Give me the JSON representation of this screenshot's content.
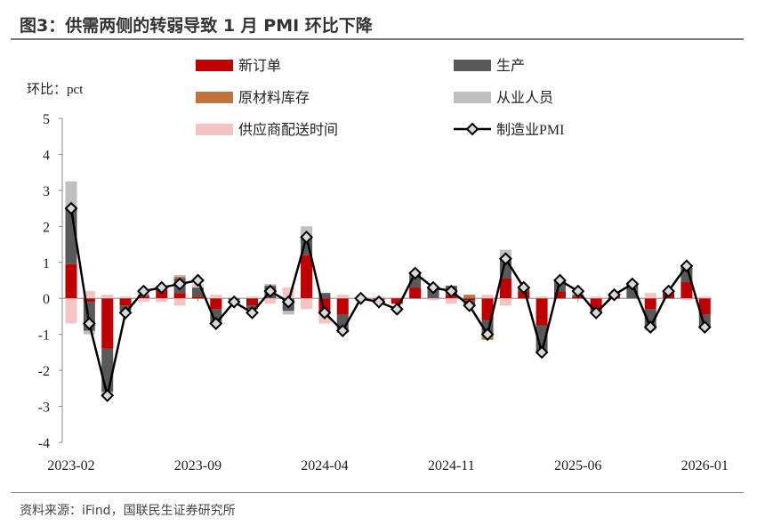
{
  "title": "图3：供需两侧的转弱导致 1 月 PMI 环比下降",
  "source": "资料来源：iFind，国联民生证券研究所",
  "chart_data": {
    "type": "bar+line",
    "ylabel": "环比：pct",
    "ylim": [
      -4,
      5
    ],
    "yticks": [
      "5",
      "4",
      "3",
      "2",
      "1",
      "0",
      "-1",
      "-2",
      "-3",
      "-4"
    ],
    "xtick_labels": [
      "2023-02",
      "2023-09",
      "2024-04",
      "2024-11",
      "2025-06",
      "2026-01"
    ],
    "legend_placement": "top",
    "categories": [
      "2023-02",
      "2023-03",
      "2023-04",
      "2023-05",
      "2023-06",
      "2023-07",
      "2023-08",
      "2023-09",
      "2023-10",
      "2023-11",
      "2023-12",
      "2024-01",
      "2024-02",
      "2024-03",
      "2024-04",
      "2024-05",
      "2024-06",
      "2024-07",
      "2024-08",
      "2024-09",
      "2024-10",
      "2024-11",
      "2024-12",
      "2025-01",
      "2025-02",
      "2025-03",
      "2025-04",
      "2025-05",
      "2025-06",
      "2025-07",
      "2025-08",
      "2025-09",
      "2025-10",
      "2025-11",
      "2025-12",
      "2026-01"
    ],
    "series": [
      {
        "name": "新订单",
        "type": "bar",
        "color": "#c00000",
        "values": [
          0.95,
          -0.1,
          -1.4,
          -0.2,
          0.05,
          0.25,
          0.15,
          0.05,
          -0.3,
          0,
          -0.2,
          0,
          0,
          1.2,
          -0.4,
          -0.45,
          0,
          -0.05,
          -0.15,
          0.3,
          0,
          0.1,
          -0.05,
          -0.6,
          0.55,
          0.2,
          -0.75,
          0.2,
          0.05,
          -0.3,
          0.05,
          0,
          -0.3,
          0.15,
          0.45,
          -0.45
        ]
      },
      {
        "name": "生产",
        "type": "bar",
        "color": "#595959",
        "values": [
          1.6,
          -0.8,
          -1.2,
          -0.15,
          0.05,
          0.05,
          0.4,
          0.25,
          -0.4,
          -0.05,
          -0.1,
          0.35,
          -0.35,
          0.5,
          0.15,
          -0.45,
          0,
          0,
          0,
          0.4,
          0.3,
          0.25,
          -0.15,
          -0.45,
          0.6,
          0.1,
          -0.7,
          0.3,
          0.05,
          -0.1,
          0.05,
          0.4,
          -0.5,
          0.05,
          0.45,
          -0.35
        ]
      },
      {
        "name": "原材料库存",
        "type": "bar",
        "color": "#c0733a",
        "values": [
          0,
          0,
          0,
          0,
          0,
          0,
          0.05,
          0,
          0,
          0,
          0,
          0,
          0,
          0.05,
          0,
          -0.05,
          0,
          0,
          0,
          0,
          0,
          0,
          0.1,
          -0.1,
          0,
          0,
          -0.05,
          0,
          0,
          0,
          0,
          0,
          0,
          0,
          0,
          0
        ]
      },
      {
        "name": "从业人员",
        "type": "bar",
        "color": "#bfbfbf",
        "values": [
          0.7,
          -0.1,
          -0.1,
          0,
          0.05,
          0,
          0.05,
          0,
          0,
          0,
          0,
          0.05,
          -0.1,
          0.25,
          -0.1,
          0,
          0,
          0,
          0,
          0,
          0,
          0,
          0,
          0,
          0.2,
          0,
          0,
          0,
          0,
          0,
          0,
          0,
          -0.1,
          0,
          0,
          0
        ]
      },
      {
        "name": "供应商配送时间",
        "type": "bar",
        "color": "#f2c4c4",
        "values": [
          -0.7,
          0.2,
          0.1,
          0.05,
          -0.1,
          -0.1,
          -0.2,
          0.1,
          0.1,
          0,
          0.05,
          -0.15,
          0.3,
          -0.3,
          -0.2,
          0.1,
          0,
          0.05,
          0,
          0,
          -0.05,
          -0.15,
          0,
          0.1,
          -0.2,
          0,
          0.05,
          0,
          0.1,
          0.05,
          0,
          0.05,
          0.15,
          0,
          -0.05,
          0.05
        ]
      },
      {
        "name": "制造业PMI",
        "type": "line",
        "color": "#000000",
        "values": [
          2.5,
          -0.7,
          -2.7,
          -0.4,
          0.2,
          0.3,
          0.4,
          0.5,
          -0.7,
          -0.1,
          -0.4,
          0.2,
          -0.1,
          1.7,
          -0.4,
          -0.9,
          0,
          -0.1,
          -0.3,
          0.7,
          0.3,
          0.2,
          -0.2,
          -1.0,
          1.1,
          0.3,
          -1.5,
          0.5,
          0.2,
          -0.4,
          0.1,
          0.4,
          -0.8,
          0.2,
          0.9,
          -0.8
        ]
      }
    ]
  }
}
